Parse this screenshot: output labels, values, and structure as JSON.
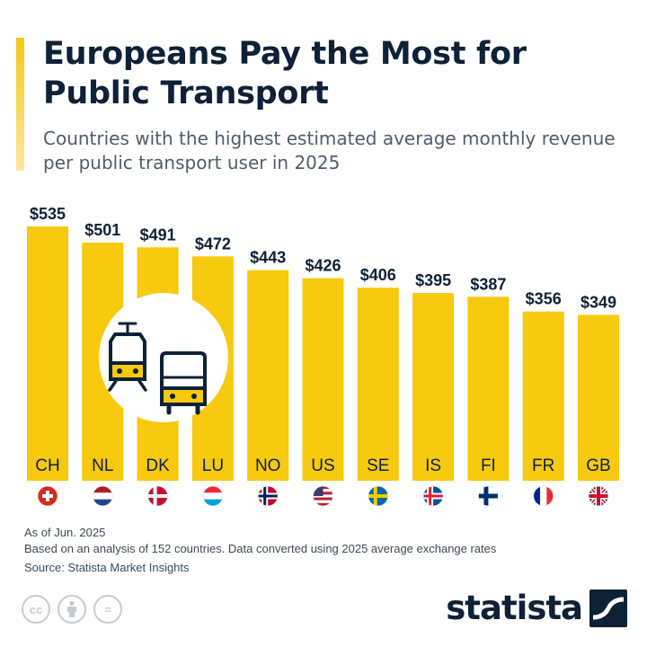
{
  "header": {
    "title": "Europeans Pay the Most for Public Transport",
    "subtitle": "Countries with the highest estimated average monthly revenue per public transport user in 2025"
  },
  "chart_data": {
    "type": "bar",
    "categories": [
      "CH",
      "NL",
      "DK",
      "LU",
      "NO",
      "US",
      "SE",
      "IS",
      "FI",
      "FR",
      "GB"
    ],
    "values": [
      535,
      501,
      491,
      472,
      443,
      426,
      406,
      395,
      387,
      356,
      349
    ],
    "value_labels": [
      "$535",
      "$501",
      "$491",
      "$472",
      "$443",
      "$426",
      "$406",
      "$395",
      "$387",
      "$356",
      "$349"
    ],
    "flag_icons": [
      "flag-ch-icon",
      "flag-nl-icon",
      "flag-dk-icon",
      "flag-lu-icon",
      "flag-no-icon",
      "flag-us-icon",
      "flag-se-icon",
      "flag-is-icon",
      "flag-fi-icon",
      "flag-fr-icon",
      "flag-gb-icon"
    ],
    "ylim": [
      0,
      535
    ],
    "grid": false,
    "legend": "none",
    "bar_color": "#f7c90f",
    "illustration": [
      "tram-icon",
      "bus-icon"
    ]
  },
  "footnotes": {
    "as_of": "As of Jun. 2025",
    "basis": "Based on an analysis of 152 countries. Data converted using 2025 average exchange rates",
    "source": "Source: Statista Market Insights"
  },
  "license_icons": [
    "cc-icon",
    "attribution-icon",
    "no-derivatives-icon"
  ],
  "license_labels": {
    "cc": "cc",
    "nd": "="
  },
  "brand": {
    "name": "statista",
    "color": "#0d2137"
  }
}
